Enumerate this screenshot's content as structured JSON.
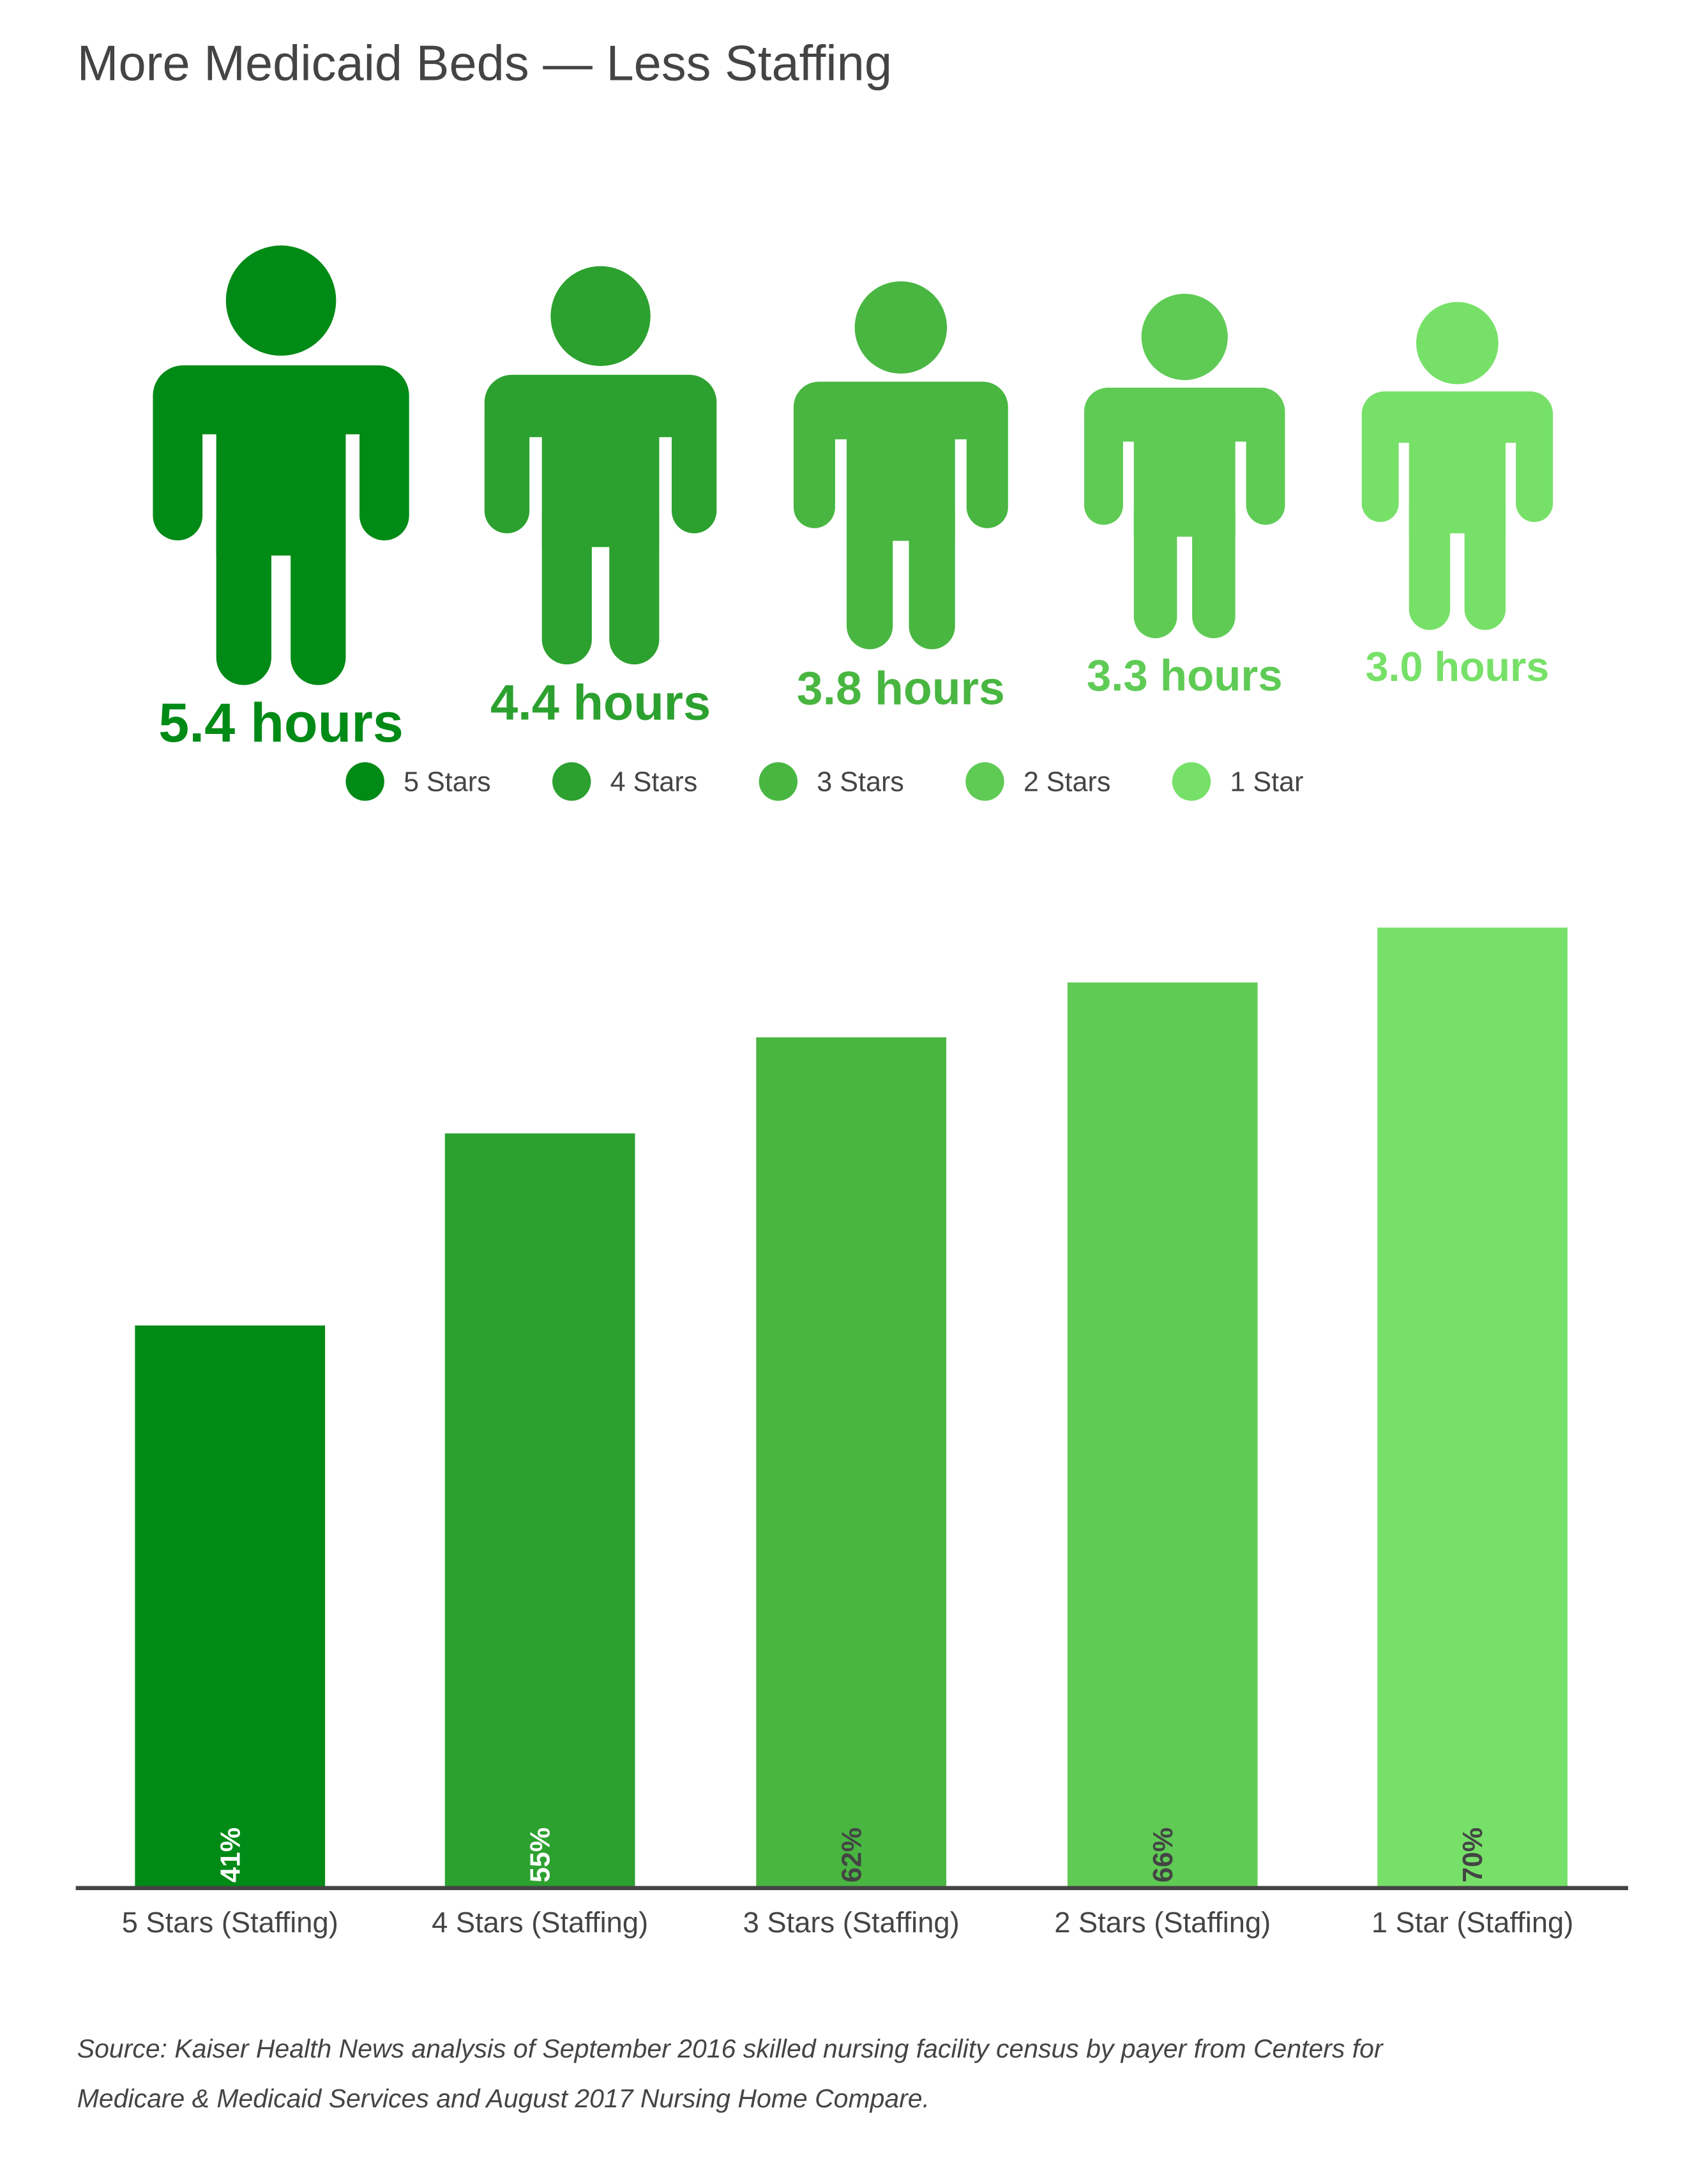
{
  "title": "More Medicaid Beds — Less Staffing",
  "colors": [
    "#008A16",
    "#2CA12F",
    "#48B641",
    "#5FCB55",
    "#77E068"
  ],
  "people": [
    {
      "hours_label": "5.4 hours",
      "hours": 5.4,
      "icon": "person-icon"
    },
    {
      "hours_label": "4.4 hours",
      "hours": 4.4,
      "icon": "person-icon"
    },
    {
      "hours_label": "3.8 hours",
      "hours": 3.8,
      "icon": "person-icon"
    },
    {
      "hours_label": "3.3 hours",
      "hours": 3.3,
      "icon": "person-icon"
    },
    {
      "hours_label": "3.0 hours",
      "hours": 3.0,
      "icon": "person-icon"
    }
  ],
  "legend": [
    "5 Stars",
    "4 Stars",
    "3 Stars",
    "2 Stars",
    "1 Star"
  ],
  "chart_data": {
    "type": "bar",
    "categories": [
      "5 Stars (Staffing)",
      "4 Stars (Staffing)",
      "3 Stars (Staffing)",
      "2 Stars (Staffing)",
      "1 Star (Staffing)"
    ],
    "values": [
      41,
      55,
      62,
      66,
      70
    ],
    "value_labels": [
      "41%",
      "55%",
      "62%",
      "66%",
      "70%"
    ],
    "ylim": [
      0,
      70
    ],
    "grid": false,
    "legend_placement": "top"
  },
  "source_lines": [
    "Source: Kaiser Health News analysis of September 2016 skilled nursing facility census by payer from Centers for",
    "Medicare & Medicaid Services and August 2017 Nursing Home Compare."
  ]
}
